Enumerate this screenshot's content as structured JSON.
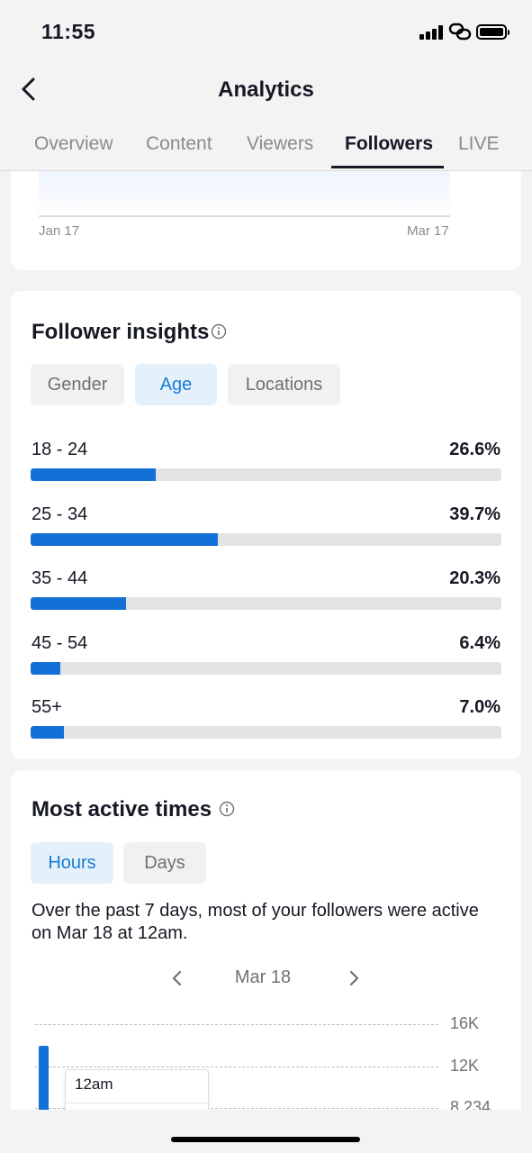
{
  "status_bar": {
    "time": "11:55"
  },
  "header": {
    "title": "Analytics"
  },
  "tabs": [
    {
      "label": "Overview",
      "active": false
    },
    {
      "label": "Content",
      "active": false
    },
    {
      "label": "Viewers",
      "active": false
    },
    {
      "label": "Followers",
      "active": true
    },
    {
      "label": "LIVE",
      "active": false
    }
  ],
  "growth_chart": {
    "x_start": "Jan 17",
    "x_end": "Mar 17"
  },
  "follower_insights": {
    "title": "Follower insights",
    "chips": [
      {
        "label": "Gender",
        "active": false
      },
      {
        "label": "Age",
        "active": true
      },
      {
        "label": "Locations",
        "active": false
      }
    ],
    "age_rows": [
      {
        "label": "18 - 24",
        "value": "26.6%",
        "percent": 26.6
      },
      {
        "label": "25 - 34",
        "value": "39.7%",
        "percent": 39.7
      },
      {
        "label": "35 - 44",
        "value": "20.3%",
        "percent": 20.3
      },
      {
        "label": "45 - 54",
        "value": "6.4%",
        "percent": 6.4
      },
      {
        "label": "55+",
        "value": "7.0%",
        "percent": 7.0
      }
    ]
  },
  "most_active": {
    "title": "Most active times",
    "chips": [
      {
        "label": "Hours",
        "active": true
      },
      {
        "label": "Days",
        "active": false
      }
    ],
    "description": "Over the past 7 days, most of your followers were active on Mar 18 at 12am.",
    "date": "Mar 18",
    "y_labels": [
      "16K",
      "12K",
      "8,234"
    ],
    "tooltip_label": "12am"
  },
  "colors": {
    "accent": "#1270d6",
    "chip_active_bg": "#e4f1fb",
    "track": "#e3e3e4"
  }
}
